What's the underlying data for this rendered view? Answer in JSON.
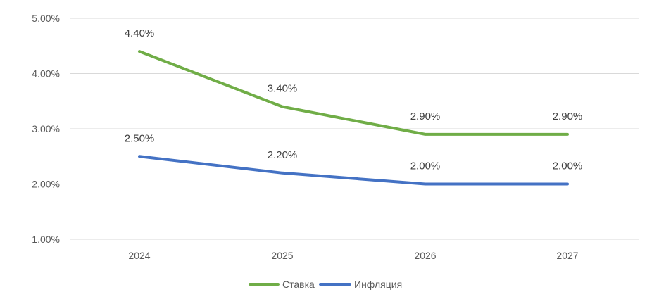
{
  "chart_data": {
    "type": "line",
    "categories": [
      "2024",
      "2025",
      "2026",
      "2027"
    ],
    "series": [
      {
        "name": "Ставка",
        "values": [
          4.4,
          3.4,
          2.9,
          2.9
        ],
        "labels": [
          "4.40%",
          "3.40%",
          "2.90%",
          "2.90%"
        ],
        "color": "#70ad47"
      },
      {
        "name": "Инфляция",
        "values": [
          2.5,
          2.2,
          2.0,
          2.0
        ],
        "labels": [
          "2.50%",
          "2.20%",
          "2.00%",
          "2.00%"
        ],
        "color": "#4472c4"
      }
    ],
    "y_ticks": [
      {
        "value": 1,
        "label": "1.00%"
      },
      {
        "value": 2,
        "label": "2.00%"
      },
      {
        "value": 3,
        "label": "3.00%"
      },
      {
        "value": 4,
        "label": "4.00%"
      },
      {
        "value": 5,
        "label": "5.00%"
      }
    ],
    "ylim": [
      1,
      5
    ],
    "grid": true,
    "legend_position": "bottom",
    "gridline_color": "#d9d9d9"
  }
}
